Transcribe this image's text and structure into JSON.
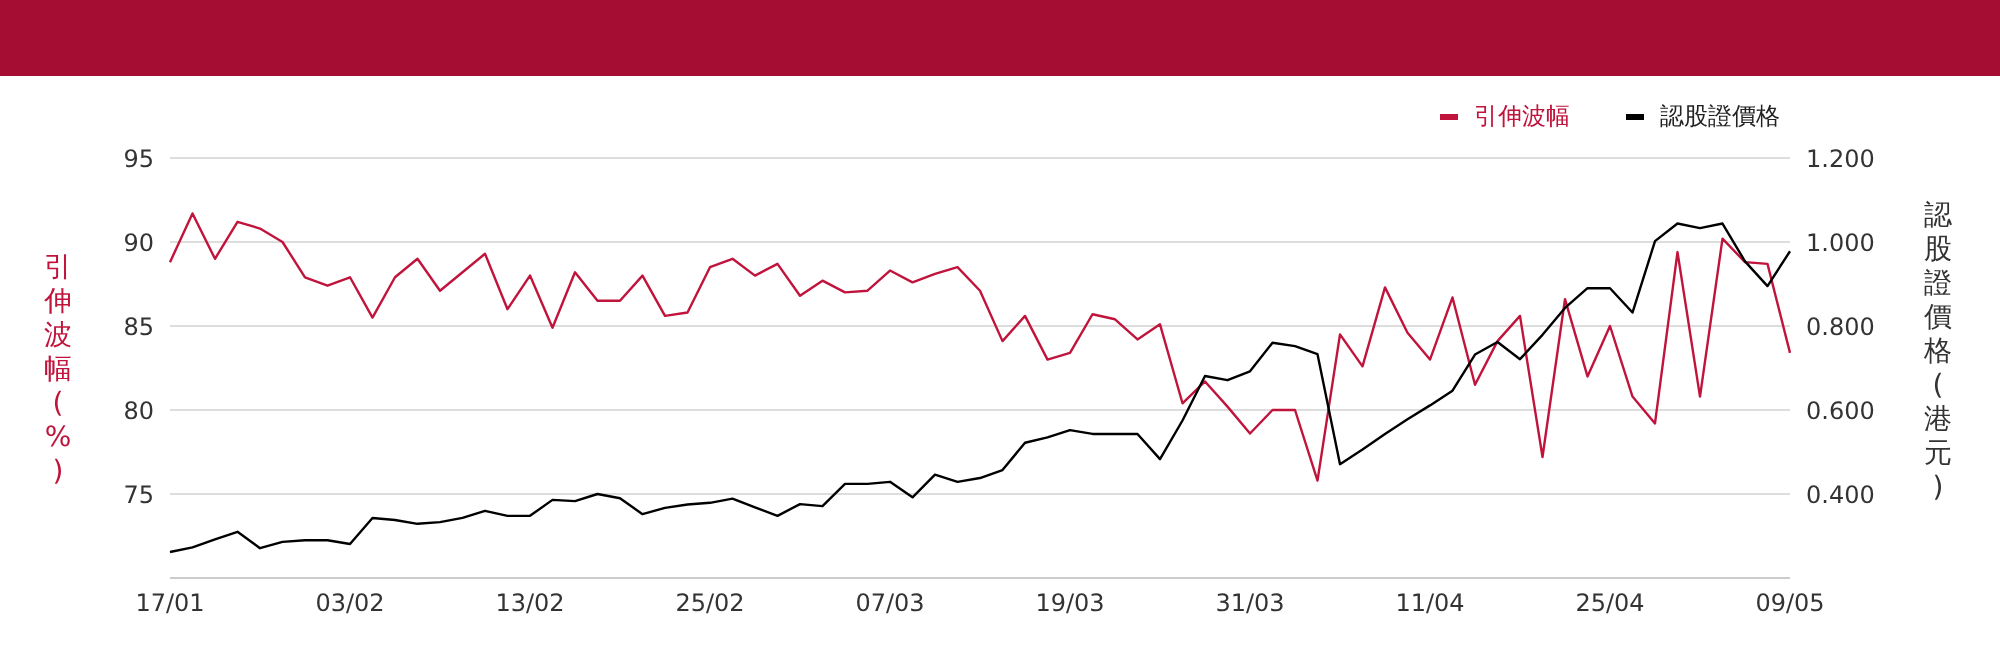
{
  "chart_data": {
    "type": "line",
    "categories": [
      "17/01",
      null,
      null,
      null,
      null,
      null,
      null,
      null,
      "03/02",
      null,
      null,
      null,
      null,
      null,
      null,
      null,
      "13/02",
      null,
      null,
      null,
      null,
      null,
      null,
      null,
      "25/02",
      null,
      null,
      null,
      null,
      null,
      null,
      null,
      "07/03",
      null,
      null,
      null,
      null,
      null,
      null,
      null,
      "19/03",
      null,
      null,
      null,
      null,
      null,
      null,
      null,
      "31/03",
      null,
      null,
      null,
      null,
      null,
      null,
      null,
      "11/04",
      null,
      null,
      null,
      null,
      null,
      null,
      null,
      "25/04",
      null,
      null,
      null,
      null,
      null,
      null,
      null,
      "09/05"
    ],
    "series": [
      {
        "name": "引伸波幅",
        "color": "#c0143c",
        "values": [
          88.8,
          91.7,
          89.0,
          91.2,
          90.8,
          90.0,
          87.9,
          87.4,
          87.9,
          85.5,
          87.9,
          89.0,
          87.1,
          88.2,
          89.3,
          86.0,
          88.0,
          84.9,
          88.2,
          86.5,
          86.5,
          88.0,
          85.6,
          85.8,
          88.5,
          89.0,
          88.0,
          88.7,
          86.8,
          87.7,
          87.0,
          87.1,
          88.3,
          87.6,
          88.1,
          88.5,
          87.1,
          84.1,
          85.6,
          83.0,
          83.4,
          85.7,
          85.4,
          84.2,
          85.1,
          80.4,
          81.7,
          80.2,
          78.6,
          80.0,
          80.0,
          75.8,
          84.5,
          82.6,
          87.3,
          84.6,
          83.0,
          86.7,
          81.5,
          84.1,
          85.6,
          77.2,
          86.6,
          82.0,
          85.0,
          80.8,
          79.2,
          89.4,
          80.8,
          90.2,
          88.8,
          88.7,
          83.4
        ]
      },
      {
        "name": "認股證價格",
        "color": "#000000",
        "axis": "y2",
        "values": [
          0.262,
          0.273,
          0.292,
          0.31,
          0.271,
          0.286,
          0.29,
          0.29,
          0.281,
          0.343,
          0.338,
          0.329,
          0.333,
          0.343,
          0.36,
          0.348,
          0.348,
          0.386,
          0.383,
          0.4,
          0.39,
          0.352,
          0.367,
          0.375,
          0.379,
          0.389,
          0.368,
          0.348,
          0.376,
          0.371,
          0.424,
          0.424,
          0.429,
          0.392,
          0.446,
          0.429,
          0.438,
          0.457,
          0.522,
          0.535,
          0.552,
          0.543,
          0.543,
          0.543,
          0.483,
          0.575,
          0.681,
          0.671,
          0.692,
          0.76,
          0.752,
          0.733,
          0.471,
          0.506,
          0.543,
          0.578,
          0.611,
          0.646,
          0.732,
          0.762,
          0.721,
          0.779,
          0.843,
          0.89,
          0.89,
          0.832,
          1.002,
          1.044,
          1.033,
          1.044,
          0.954,
          0.895,
          0.978
        ]
      }
    ],
    "ylabel": "引伸波幅(%)",
    "y2label": "認股證價格(港元)",
    "ylim": [
      70,
      95
    ],
    "yticks": [
      75,
      80,
      85,
      90,
      95
    ],
    "y2lim": [
      0.2,
      1.2
    ],
    "y2ticks": [
      {
        "value": 0.4,
        "label": "0.400"
      },
      {
        "value": 0.6,
        "label": "0.600"
      },
      {
        "value": 0.8,
        "label": "0.800"
      },
      {
        "value": 1.0,
        "label": "1.000"
      },
      {
        "value": 1.2,
        "label": "1.200"
      }
    ],
    "grid": "y",
    "legend": "top right",
    "marker": "none",
    "line_style": "solid"
  }
}
